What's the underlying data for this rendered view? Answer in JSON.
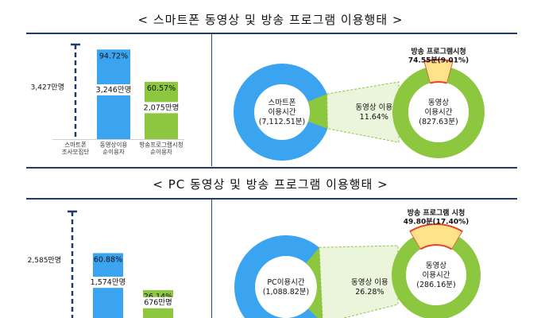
{
  "sections": [
    {
      "title": "< 스마트폰 동영상 및 방송 프로그램 이용행태 >",
      "bar_population_label": "3,427만명",
      "bars": [
        {
          "label": "스마트폰\n조사모집단",
          "pct": "",
          "value": ""
        },
        {
          "label": "동영상이용\n순이용자",
          "pct": "94.72%",
          "value": "3,246만명"
        },
        {
          "label": "방송프로그램시청\n순이용자",
          "pct": "60.57%",
          "value": "2,075만명"
        }
      ],
      "donut_left_label": "스마트폰\n이용시간\n(7,112.51분)",
      "link_label": "동영상 이용\n11.64%",
      "donut_right_label": "동영상\n이용시간\n(827.63분)",
      "callout_label": "방송 프로그램시청\n74.55분(9.01%)"
    },
    {
      "title": "< PC 동영상 및 방송 프로그램 이용행태 >",
      "bar_population_label": "2,585만명",
      "bars": [
        {
          "label": "",
          "pct": "",
          "value": ""
        },
        {
          "label": "",
          "pct": "60.88%",
          "value": "1,574만명"
        },
        {
          "label": "",
          "pct": "26.14%",
          "value": "676만명"
        }
      ],
      "donut_left_label": "PC이용시간\n(1,088.82분)",
      "link_label": "동영상 이용\n26.28%",
      "donut_right_label": "동영상\n이용시간\n(286.16분)",
      "callout_label": "방송 프로그램 시청\n49.80분(17.40%)"
    }
  ],
  "chart_data": [
    {
      "type": "bar",
      "title": "< 스마트폰 동영상 및 방송 프로그램 이용행태 >",
      "categories": [
        "스마트폰 조사모집단",
        "동영상이용 순이용자",
        "방송프로그램시청 순이용자"
      ],
      "values": [
        3427,
        3246,
        2075
      ],
      "percent_of_population": [
        100,
        94.72,
        60.57
      ],
      "unit": "만명"
    },
    {
      "type": "pie",
      "title": "< 스마트폰 동영상 및 방송 프로그램 이용행태 >",
      "total_label": "스마트폰 이용시간",
      "total_minutes": 7112.51,
      "video_share_pct": 11.64,
      "video_minutes": 827.63,
      "broadcast_minutes": 74.55,
      "broadcast_share_of_video_pct": 9.01
    },
    {
      "type": "bar",
      "title": "< PC 동영상 및 방송 프로그램 이용행태 >",
      "categories": [
        "",
        "",
        ""
      ],
      "values": [
        2585,
        1574,
        676
      ],
      "percent_of_population": [
        100,
        60.88,
        26.14
      ],
      "unit": "만명"
    },
    {
      "type": "pie",
      "title": "< PC 동영상 및 방송 프로그램 이용행태 >",
      "total_label": "PC이용시간",
      "total_minutes": 1088.82,
      "video_share_pct": 26.28,
      "video_minutes": 286.16,
      "broadcast_minutes": 49.8,
      "broadcast_share_of_video_pct": 17.4
    }
  ],
  "colors": {
    "blue": "#3aa4f0",
    "green": "#8dc63f",
    "yellow": "#ffe38a",
    "red": "#e8412b",
    "navy": "#1f3b66"
  }
}
